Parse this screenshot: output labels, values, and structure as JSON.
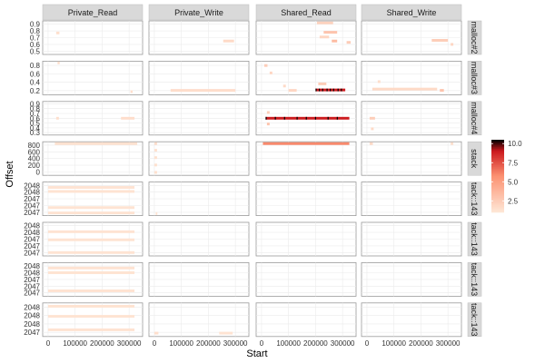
{
  "chart_data": {
    "type": "heatmap",
    "title": "",
    "xlabel": "Start",
    "ylabel": "Offset",
    "columns": [
      "Private_Read",
      "Private_Write",
      "Shared_Read",
      "Shared_Write"
    ],
    "rows": [
      {
        "label": "malloc#2",
        "yticks": [
          "0.5",
          "0.6",
          "0.7",
          "0.8",
          "0.9"
        ],
        "ylim": [
          0.45,
          0.95
        ]
      },
      {
        "label": "malloc#3",
        "yticks": [
          "0.2",
          "0.4",
          "0.6",
          "0.8"
        ],
        "ylim": [
          0.05,
          0.82
        ]
      },
      {
        "label": "malloc#4",
        "yticks": [
          "0.3",
          "0.4",
          "0.5",
          "0.6",
          "0.7",
          "0.8",
          "0.9"
        ],
        "ylim": [
          0.25,
          0.95
        ]
      },
      {
        "label": "stack",
        "yticks": [
          "0",
          "200",
          "400",
          "600",
          "800"
        ],
        "ylim": [
          -80,
          830
        ]
      },
      {
        "label": "tack::143",
        "yticks": [
          "2047",
          "2047",
          "2047",
          "2048",
          "2048"
        ],
        "ylim": [
          0,
          5
        ]
      },
      {
        "label": "tack::143",
        "yticks": [
          "2047",
          "2047",
          "2047",
          "2048",
          "2048"
        ],
        "ylim": [
          0,
          5
        ]
      },
      {
        "label": "tack::143",
        "yticks": [
          "2047",
          "2047",
          "2047",
          "2048",
          "2048"
        ],
        "ylim": [
          0,
          5
        ]
      },
      {
        "label": "tack::143",
        "yticks": [
          "2047",
          "2048",
          "2048",
          "2048"
        ],
        "ylim": [
          0,
          4
        ]
      }
    ],
    "xticks": [
      "0",
      "100000",
      "200000",
      "300000"
    ],
    "xtick_values": [
      0,
      100000,
      200000,
      300000
    ],
    "xlim": [
      -20000,
      350000
    ],
    "legend": {
      "ticks": [
        "2.5",
        "5.0",
        "7.5",
        "10.0"
      ],
      "tick_values": [
        2.5,
        5.0,
        7.5,
        10.0
      ],
      "range": [
        1,
        10.5
      ],
      "position": "right"
    },
    "colors": {
      "low": "#fee8d8",
      "mid": "#fc9272",
      "high": "#cb181d",
      "max": "#000000",
      "strip_bg": "#d9d9d9",
      "grid": "#ebebeb"
    },
    "cells": [
      {
        "col": 0,
        "row": 0,
        "x": 30000,
        "y": 0.77,
        "w": 12000,
        "fill": 1.5
      },
      {
        "col": 1,
        "row": 0,
        "x": 255000,
        "y": 0.65,
        "w": 40000,
        "fill": 1.8
      },
      {
        "col": 2,
        "row": 0,
        "x": 205000,
        "y": 0.92,
        "w": 60000,
        "fill": 2.2
      },
      {
        "col": 2,
        "row": 0,
        "x": 230000,
        "y": 0.78,
        "w": 50000,
        "fill": 3
      },
      {
        "col": 2,
        "row": 0,
        "x": 215000,
        "y": 0.71,
        "w": 35000,
        "fill": 2
      },
      {
        "col": 2,
        "row": 0,
        "x": 260000,
        "y": 0.65,
        "w": 20000,
        "fill": 3.5
      },
      {
        "col": 2,
        "row": 0,
        "x": 315000,
        "y": 0.63,
        "w": 15000,
        "fill": 2.5
      },
      {
        "col": 3,
        "row": 0,
        "x": 240000,
        "y": 0.66,
        "w": 60000,
        "fill": 2.5
      },
      {
        "col": 3,
        "row": 0,
        "x": 310000,
        "y": 0.6,
        "w": 10000,
        "fill": 2
      },
      {
        "col": 0,
        "row": 1,
        "x": 35000,
        "y": 0.78,
        "w": 8000,
        "fill": 1.5
      },
      {
        "col": 0,
        "row": 1,
        "x": 305000,
        "y": 0.12,
        "w": 8000,
        "fill": 1.5
      },
      {
        "col": 1,
        "row": 1,
        "x": 60000,
        "y": 0.15,
        "w": 240000,
        "fill": 1.6
      },
      {
        "col": 2,
        "row": 1,
        "x": 10000,
        "y": 0.72,
        "w": 12000,
        "fill": 2.5
      },
      {
        "col": 2,
        "row": 1,
        "x": 30000,
        "y": 0.55,
        "w": 10000,
        "fill": 2
      },
      {
        "col": 2,
        "row": 1,
        "x": 80000,
        "y": 0.25,
        "w": 10000,
        "fill": 1.8
      },
      {
        "col": 2,
        "row": 1,
        "x": 100000,
        "y": 0.15,
        "w": 30000,
        "fill": 2
      },
      {
        "col": 2,
        "row": 1,
        "x": 210000,
        "y": 0.3,
        "w": 30000,
        "fill": 2.5
      },
      {
        "col": 2,
        "row": 1,
        "x": 200000,
        "y": 0.16,
        "w": 110000,
        "fill": 9
      },
      {
        "col": 3,
        "row": 1,
        "x": 40000,
        "y": 0.35,
        "w": 10000,
        "fill": 1.5
      },
      {
        "col": 3,
        "row": 1,
        "x": 20000,
        "y": 0.18,
        "w": 240000,
        "fill": 1.8
      },
      {
        "col": 3,
        "row": 1,
        "x": 270000,
        "y": 0.15,
        "w": 15000,
        "fill": 3
      },
      {
        "col": 0,
        "row": 2,
        "x": 30000,
        "y": 0.6,
        "w": 10000,
        "fill": 1.5
      },
      {
        "col": 0,
        "row": 2,
        "x": 270000,
        "y": 0.6,
        "w": 50000,
        "fill": 1.6
      },
      {
        "col": 2,
        "row": 2,
        "x": 20000,
        "y": 0.72,
        "w": 10000,
        "fill": 2.5
      },
      {
        "col": 2,
        "row": 2,
        "x": 15000,
        "y": 0.6,
        "w": 310000,
        "fill": 9
      },
      {
        "col": 2,
        "row": 2,
        "x": 20000,
        "y": 0.48,
        "w": 10000,
        "fill": 3
      },
      {
        "col": 3,
        "row": 2,
        "x": 10000,
        "y": 0.6,
        "w": 20000,
        "fill": 2.5
      },
      {
        "col": 3,
        "row": 2,
        "x": 15000,
        "y": 0.38,
        "w": 10000,
        "fill": 1.8
      },
      {
        "col": 0,
        "row": 3,
        "x": 25000,
        "y": 780,
        "w": 305000,
        "fill": 1.4
      },
      {
        "col": 1,
        "row": 3,
        "x": 0,
        "y": 780,
        "w": 10000,
        "fill": 1.6
      },
      {
        "col": 1,
        "row": 3,
        "x": 0,
        "y": 600,
        "w": 10000,
        "fill": 1.4
      },
      {
        "col": 1,
        "row": 3,
        "x": 0,
        "y": 400,
        "w": 10000,
        "fill": 1.4
      },
      {
        "col": 1,
        "row": 3,
        "x": 0,
        "y": 200,
        "w": 10000,
        "fill": 1.4
      },
      {
        "col": 1,
        "row": 3,
        "x": 0,
        "y": 0,
        "w": 10000,
        "fill": 1.4
      },
      {
        "col": 2,
        "row": 3,
        "x": 5000,
        "y": 780,
        "w": 320000,
        "fill": 6
      },
      {
        "col": 3,
        "row": 3,
        "x": 10000,
        "y": 780,
        "w": 12000,
        "fill": 1.8
      },
      {
        "col": 3,
        "row": 3,
        "x": 310000,
        "y": 780,
        "w": 10000,
        "fill": 1.5
      },
      {
        "col": 0,
        "row": 4,
        "x": 0,
        "y": 4.2,
        "w": 320000,
        "fill": 1.3
      },
      {
        "col": 0,
        "row": 4,
        "x": 0,
        "y": 3.6,
        "w": 320000,
        "fill": 1.3
      },
      {
        "col": 0,
        "row": 4,
        "x": 0,
        "y": 1.2,
        "w": 320000,
        "fill": 1.3
      },
      {
        "col": 0,
        "row": 4,
        "x": 0,
        "y": 0.4,
        "w": 320000,
        "fill": 1.3
      },
      {
        "col": 1,
        "row": 4,
        "x": 5000,
        "y": 0.3,
        "w": 6000,
        "fill": 1.3
      },
      {
        "col": 0,
        "row": 5,
        "x": 0,
        "y": 3.6,
        "w": 320000,
        "fill": 1.3
      },
      {
        "col": 0,
        "row": 5,
        "x": 0,
        "y": 2.4,
        "w": 320000,
        "fill": 1.3
      },
      {
        "col": 0,
        "row": 5,
        "x": 0,
        "y": 0.5,
        "w": 320000,
        "fill": 1.3
      },
      {
        "col": 0,
        "row": 6,
        "x": 0,
        "y": 4.2,
        "w": 320000,
        "fill": 1.3
      },
      {
        "col": 0,
        "row": 6,
        "x": 0,
        "y": 3.5,
        "w": 320000,
        "fill": 1.3
      },
      {
        "col": 0,
        "row": 6,
        "x": 0,
        "y": 0.8,
        "w": 320000,
        "fill": 1.3
      },
      {
        "col": 0,
        "row": 7,
        "x": 0,
        "y": 3.6,
        "w": 320000,
        "fill": 1.3
      },
      {
        "col": 0,
        "row": 7,
        "x": 0,
        "y": 2.4,
        "w": 320000,
        "fill": 1.3
      },
      {
        "col": 0,
        "row": 7,
        "x": 0,
        "y": 0.8,
        "w": 320000,
        "fill": 1.3
      },
      {
        "col": 1,
        "row": 7,
        "x": 0,
        "y": 0.4,
        "w": 15000,
        "fill": 1.5
      },
      {
        "col": 1,
        "row": 7,
        "x": 240000,
        "y": 0.4,
        "w": 50000,
        "fill": 1.3
      }
    ]
  }
}
